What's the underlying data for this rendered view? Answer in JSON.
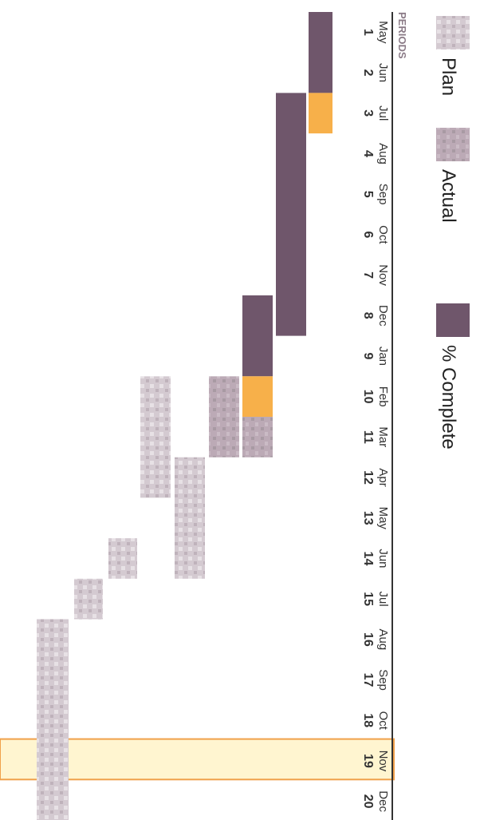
{
  "chart_data": {
    "type": "gantt",
    "title": "",
    "axis_title": "PERIODS",
    "periods": [
      1,
      2,
      3,
      4,
      5,
      6,
      7,
      8,
      9,
      10,
      11,
      12,
      13,
      14,
      15,
      16,
      17,
      18,
      19,
      20
    ],
    "months": [
      "May",
      "Jun",
      "Jul",
      "Aug",
      "Sep",
      "Oct",
      "Nov",
      "Dec",
      "Jan",
      "Feb",
      "Mar",
      "Apr",
      "May",
      "Jun",
      "Jul",
      "Aug",
      "Sep",
      "Oct",
      "Nov",
      "Dec"
    ],
    "legend": [
      {
        "name": "Plan",
        "color": "#cbbfc8"
      },
      {
        "name": "Actual",
        "color": "#b9a7b4"
      },
      {
        "name": "% Complete",
        "color": "#6f566b"
      }
    ],
    "current_period": 19,
    "highlight_color": "#f7b04a",
    "tasks": [
      {
        "row": 1,
        "segments": [
          {
            "kind": "complete",
            "start": 1,
            "duration": 2
          }
        ]
      },
      {
        "row": 1,
        "segments": [
          {
            "kind": "highlight",
            "start": 3,
            "duration": 1
          }
        ]
      },
      {
        "row": 2,
        "segments": [
          {
            "kind": "complete",
            "start": 3,
            "duration": 6
          }
        ]
      },
      {
        "row": 3,
        "segments": [
          {
            "kind": "complete",
            "start": 8,
            "duration": 2
          },
          {
            "kind": "highlight",
            "start": 10,
            "duration": 1
          },
          {
            "kind": "actual",
            "start": 11,
            "duration": 1
          }
        ]
      },
      {
        "row": 4,
        "segments": [
          {
            "kind": "actual",
            "start": 10,
            "duration": 2
          }
        ]
      },
      {
        "row": 5,
        "segments": [
          {
            "kind": "plan",
            "start": 12,
            "duration": 3
          }
        ]
      },
      {
        "row": 6,
        "segments": [
          {
            "kind": "plan",
            "start": 10,
            "duration": 3
          }
        ]
      },
      {
        "row": 7,
        "segments": [
          {
            "kind": "plan",
            "start": 14,
            "duration": 1
          }
        ]
      },
      {
        "row": 8,
        "segments": [
          {
            "kind": "plan",
            "start": 15,
            "duration": 1
          }
        ]
      },
      {
        "row": 9,
        "segments": [
          {
            "kind": "plan",
            "start": 16,
            "duration": 5
          }
        ]
      }
    ]
  }
}
